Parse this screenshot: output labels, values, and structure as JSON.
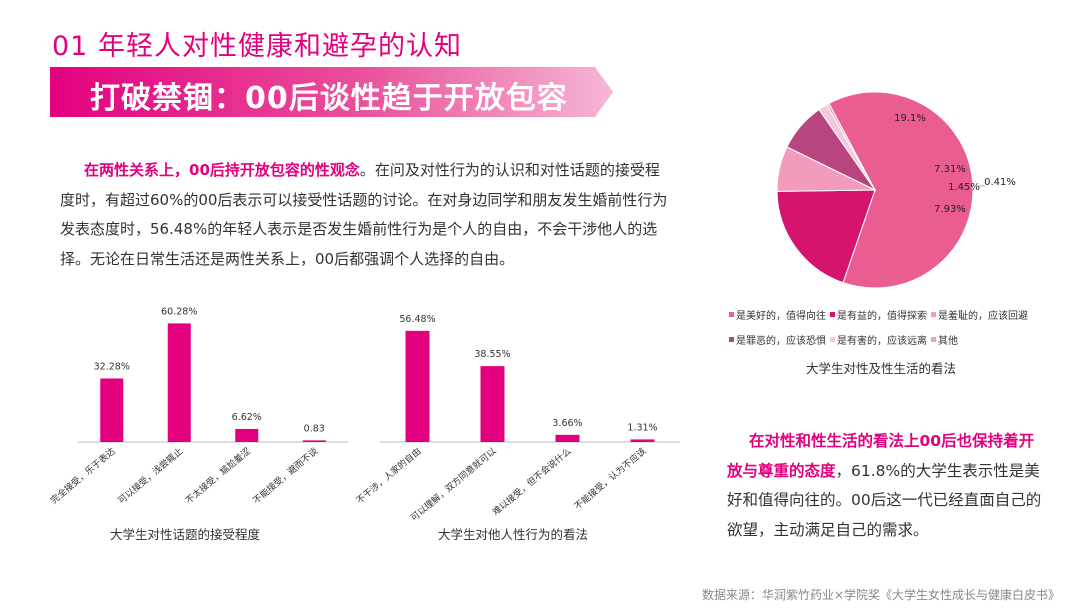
{
  "header": {
    "title": "01 年轻人对性健康和避孕的认知",
    "banner": "打破禁锢：00后谈性趋于开放包容"
  },
  "intro": {
    "highlight": "在两性关系上，00后持开放包容的性观念",
    "text": "。在问及对性行为的认识和对性话题的接受程度时，有超过60%的00后表示可以接受性话题的讨论。在对身边同学和朋友发生婚前性行为发表态度时，56.48%的年轻人表示是否发生婚前性行为是个人的自由，不会干涉他人的选择。无论在日常生活还是两性关系上，00后都强调个人选择的自由。"
  },
  "summary": {
    "highlight": "在对性和性生活的看法上00后也保持着开放与尊重的态度",
    "text": "，61.8%的大学生表示性是美好和值得向往的。00后这一代已经直面自己的欲望，主动满足自己的需求。"
  },
  "source": "数据来源：华润紫竹药业×学院奖《大学生女性成长与健康白皮书》",
  "colors": {
    "accent": "#e3007f",
    "bar": "#e3007f"
  },
  "chart_data": [
    {
      "type": "bar",
      "title": "大学生对性话题的接受程度",
      "categories": [
        "完全接受，乐于表达",
        "可以接受，浅尝辄止",
        "不太接受，尴尬羞涩",
        "不能接受，避而不谈"
      ],
      "values": [
        32.28,
        60.28,
        6.62,
        0.83
      ],
      "labels": [
        "32.28%",
        "60.28%",
        "6.62%",
        "0.83"
      ],
      "ylim": [
        0,
        65
      ]
    },
    {
      "type": "bar",
      "title": "大学生对他人性行为的看法",
      "categories": [
        "不干涉，人家的自由",
        "可以理解，双方同意就可以",
        "难以接受，但不会说什么",
        "不能接受，认为不应该"
      ],
      "values": [
        56.48,
        38.55,
        3.66,
        1.31
      ],
      "labels": [
        "56.48%",
        "38.55%",
        "3.66%",
        "1.31%"
      ],
      "ylim": [
        0,
        65
      ]
    },
    {
      "type": "pie",
      "title": "大学生对性及性生活的看法",
      "categories": [
        "是美好的，值得向往",
        "是有益的，值得探索",
        "是羞耻的，应该回避",
        "是罪恶的，应该恐惧",
        "是有害的，应该远离",
        "其他"
      ],
      "values": [
        61.8,
        19.1,
        7.31,
        7.93,
        1.45,
        0.41
      ],
      "labels": [
        "61.8%",
        "19.1%",
        "7.31%",
        "7.93%",
        "1.45%",
        "0.41%"
      ],
      "colors": [
        "#ea5d92",
        "#d6136f",
        "#f29bbf",
        "#b8457e",
        "#f7c6da",
        "#e9a3c3"
      ],
      "legend_rows": [
        [
          0,
          1,
          2
        ],
        [
          3,
          4,
          5
        ]
      ]
    }
  ]
}
